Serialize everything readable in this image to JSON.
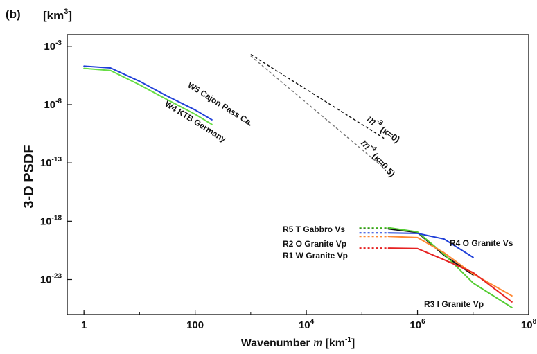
{
  "chart_data": {
    "type": "line",
    "panel_label": "(b)",
    "ylabel": "3-D PSDF",
    "yunit": {
      "base": "[km",
      "exp": "3",
      "close": "]"
    },
    "xlabel": {
      "prefix": "Wavenumber ",
      "var": "m",
      "suffix": " [km",
      "exp": "-1",
      "close": "]"
    },
    "x_scale": "log",
    "y_scale": "log",
    "xlim": [
      0.5,
      100000000
    ],
    "ylim": [
      1e-26,
      0.01
    ],
    "x_ticks": [
      {
        "base": "1",
        "exp": "",
        "value": 1
      },
      {
        "base": "100",
        "exp": "",
        "value": 100
      },
      {
        "base": "10",
        "exp": "4",
        "value": 10000
      },
      {
        "base": "10",
        "exp": "6",
        "value": 1000000
      },
      {
        "base": "10",
        "exp": "8",
        "value": 100000000
      }
    ],
    "y_ticks": [
      {
        "base": "10",
        "exp": "-3",
        "value": 0.001
      },
      {
        "base": "10",
        "exp": "-8",
        "value": 1e-08
      },
      {
        "base": "10",
        "exp": "-13",
        "value": 1e-13
      },
      {
        "base": "10",
        "exp": "-18",
        "value": 1e-18
      },
      {
        "base": "10",
        "exp": "-23",
        "value": 1e-23
      }
    ],
    "series": [
      {
        "name": "W5 Cajon Pass Ca.",
        "color": "#1f3fd8",
        "dash": false,
        "x": [
          1,
          3,
          10,
          30,
          100,
          200
        ],
        "y": [
          2e-05,
          1.4e-05,
          1e-06,
          6e-08,
          3.5e-09,
          5e-10
        ]
      },
      {
        "name": "W4 KTB Germany",
        "color": "#66dd44",
        "dash": false,
        "x": [
          1,
          3,
          10,
          30,
          100,
          200
        ],
        "y": [
          1.3e-05,
          8.5e-06,
          5e-07,
          3e-08,
          1.5e-09,
          2e-10
        ]
      },
      {
        "name": "R5 T Gabbro Vs",
        "color": "#111111",
        "dash": false,
        "x": [
          100000,
          300000,
          1000000,
          3000000,
          10000000
        ],
        "y": [
          2.5e-19,
          2.2e-19,
          1.1e-19,
          1.2e-21,
          2.5e-23
        ]
      },
      {
        "name": "R5 T Gabbro Vs (green)",
        "color": "#55cc33",
        "dash": false,
        "x": [
          100000,
          1000000,
          3000000,
          10000000,
          50000000
        ],
        "y": [
          2.8e-19,
          1.2e-19,
          1.5e-21,
          5e-24,
          4e-26
        ]
      },
      {
        "name": "R4 O Granite Vs",
        "color": "#1f3fd8",
        "dash": false,
        "x": [
          100000,
          1000000,
          3000000,
          10000000
        ],
        "y": [
          1e-19,
          9e-20,
          3e-20,
          8e-22
        ]
      },
      {
        "name": "R2 O Granite Vp",
        "color": "#ff8833",
        "dash": false,
        "x": [
          100000,
          1000000,
          3000000,
          10000000,
          50000000
        ],
        "y": [
          5e-20,
          4e-20,
          2e-21,
          3e-23,
          4e-25
        ]
      },
      {
        "name": "R1 W Granite Vp",
        "color": "#e62222",
        "dash": false,
        "x": [
          100000,
          1000000,
          3000000,
          10000000,
          50000000
        ],
        "y": [
          5e-21,
          4.5e-21,
          5e-22,
          4e-23,
          1.2e-25
        ]
      }
    ],
    "reference_lines": [
      {
        "label": "m-3 (κ=0)",
        "color": "#111111",
        "slope": -3,
        "x": [
          1000,
          250000
        ],
        "y": [
          0.0002,
          1.3e-11
        ]
      },
      {
        "label": "m-4 (κ=0.5)",
        "color": "#777777",
        "slope": -4,
        "x": [
          1000,
          230000
        ],
        "y": [
          0.00015,
          5e-14
        ]
      }
    ],
    "labels": {
      "w5": "W5 Cajon Pass Ca.",
      "w4": "W4 KTB Germany",
      "r5": "R5 T Gabbro Vs",
      "r2": "R2 O Granite Vp",
      "r1": "R1 W Granite Vp",
      "r4": "R4 O Granite Vs",
      "r3": "R3 I Granite Vp",
      "m3_var": "m",
      "m3_exp": "-3",
      "m3_paren": "(κ=0)",
      "m4_var": "m",
      "m4_exp": "-4",
      "m4_paren": "(κ=0.5)"
    }
  }
}
